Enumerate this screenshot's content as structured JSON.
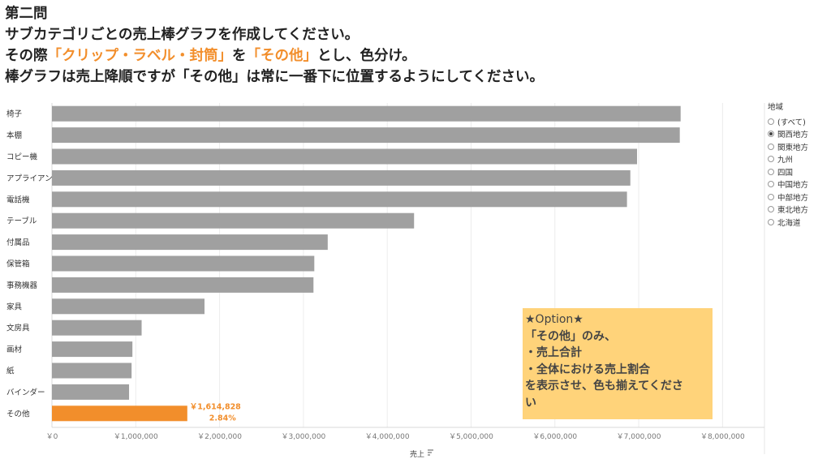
{
  "title": {
    "line1": "第二問",
    "line2": "サブカテゴリごとの売上棒グラフを作成してください。",
    "line3_a": "その際",
    "line3_b": "「クリップ・ラベル・封筒」",
    "line3_c": "を",
    "line3_d": "「その他」",
    "line3_e": "とし、色分け。",
    "line4": "棒グラフは売上降順ですが「その他」は常に一番下に位置するようにしてください。"
  },
  "legend": {
    "title": "地域",
    "options": [
      "(すべて)",
      "関西地方",
      "関東地方",
      "九州",
      "四国",
      "中国地方",
      "中部地方",
      "東北地方",
      "北海道"
    ],
    "selected": "関西地方"
  },
  "note": {
    "heading": "★Option★",
    "line1": "「その他」のみ、",
    "line2": "・売上合計",
    "line3": "・全体における売上割合",
    "line4": "を表示させ、色も揃えてくださ",
    "line5": "い"
  },
  "colors": {
    "bar": "#a0a0a0",
    "highlight": "#f28e2b",
    "note_bg": "#ffd37a"
  },
  "chart_data": {
    "type": "bar",
    "orientation": "horizontal",
    "categories": [
      "椅子",
      "本棚",
      "コピー機",
      "アプライアン",
      "電話機",
      "テーブル",
      "付属品",
      "保管箱",
      "事務機器",
      "家具",
      "文房具",
      "画材",
      "紙",
      "バインダー",
      "その他"
    ],
    "values": [
      7500000,
      7490000,
      6980000,
      6900000,
      6860000,
      4320000,
      3290000,
      3130000,
      3120000,
      1820000,
      1070000,
      960000,
      950000,
      920000,
      1614828
    ],
    "highlight_index": 14,
    "highlight_labels": [
      "￥1,614,828",
      "2.84%"
    ],
    "xlabel": "売上",
    "xlim": [
      0,
      8500000
    ],
    "xticks": [
      0,
      1000000,
      2000000,
      3000000,
      4000000,
      5000000,
      6000000,
      7000000,
      8000000
    ],
    "xtick_labels": [
      "￥0",
      "￥1,000,000",
      "￥2,000,000",
      "￥3,000,000",
      "￥4,000,000",
      "￥5,000,000",
      "￥6,000,000",
      "￥7,000,000",
      "￥8,000,000"
    ],
    "grid": true
  }
}
